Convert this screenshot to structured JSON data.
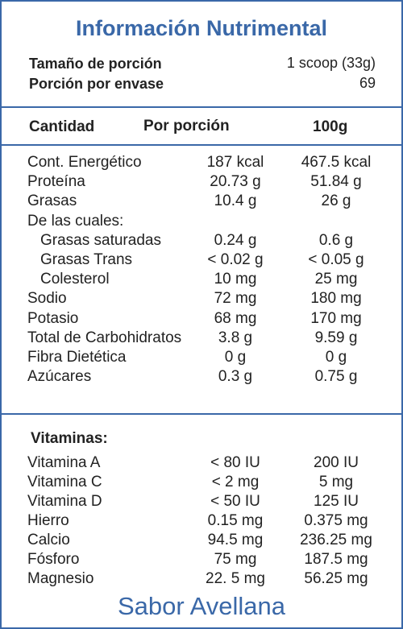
{
  "title": "Información Nutrimental",
  "serving": {
    "size_label": "Tamaño de porción",
    "size_value": "1 scoop (33g)",
    "per_container_label": "Porción por envase",
    "per_container_value": "69"
  },
  "header": {
    "amount": "Cantidad",
    "per_serving": "Por porción",
    "per_100g": "100g"
  },
  "nutrients": [
    {
      "name": "Cont. Energético",
      "per_serving": "187 kcal",
      "per_100g": "467.5 kcal",
      "indent": false
    },
    {
      "name": "Proteína",
      "per_serving": "20.73 g",
      "per_100g": "51.84 g",
      "indent": false
    },
    {
      "name": "Grasas",
      "per_serving": "10.4 g",
      "per_100g": "26 g",
      "indent": false
    },
    {
      "name": "De las cuales:",
      "per_serving": "",
      "per_100g": "",
      "indent": false
    },
    {
      "name": "Grasas saturadas",
      "per_serving": "0.24 g",
      "per_100g": "0.6 g",
      "indent": true
    },
    {
      "name": "Grasas Trans",
      "per_serving": "< 0.02 g",
      "per_100g": "< 0.05 g",
      "indent": true
    },
    {
      "name": "Colesterol",
      "per_serving": "10 mg",
      "per_100g": "25 mg",
      "indent": true
    },
    {
      "name": "Sodio",
      "per_serving": "72 mg",
      "per_100g": "180 mg",
      "indent": false
    },
    {
      "name": "Potasio",
      "per_serving": "68 mg",
      "per_100g": "170 mg",
      "indent": false
    },
    {
      "name": "Total de Carbohidratos",
      "per_serving": "3.8 g",
      "per_100g": "9.59 g",
      "indent": false
    },
    {
      "name": "Fibra Dietética",
      "per_serving": "0 g",
      "per_100g": "0 g",
      "indent": false
    },
    {
      "name": "Azúcares",
      "per_serving": "0.3 g",
      "per_100g": "0.75 g",
      "indent": false
    }
  ],
  "vitamins_heading": "Vitaminas:",
  "vitamins": [
    {
      "name": "Vitamina A",
      "per_serving": "< 80 IU",
      "per_100g": "200 IU"
    },
    {
      "name": "Vitamina C",
      "per_serving": "< 2 mg",
      "per_100g": "5 mg"
    },
    {
      "name": "Vitamina D",
      "per_serving": "< 50 IU",
      "per_100g": "125 IU"
    },
    {
      "name": "Hierro",
      "per_serving": "0.15 mg",
      "per_100g": "0.375 mg"
    },
    {
      "name": "Calcio",
      "per_serving": "94.5 mg",
      "per_100g": "236.25 mg"
    },
    {
      "name": "Fósforo",
      "per_serving": "75 mg",
      "per_100g": "187.5 mg"
    },
    {
      "name": "Magnesio",
      "per_serving": "22. 5 mg",
      "per_100g": "56.25 mg"
    }
  ],
  "flavor": "Sabor Avellana",
  "colors": {
    "accent": "#3a68a8",
    "text": "#222222"
  }
}
